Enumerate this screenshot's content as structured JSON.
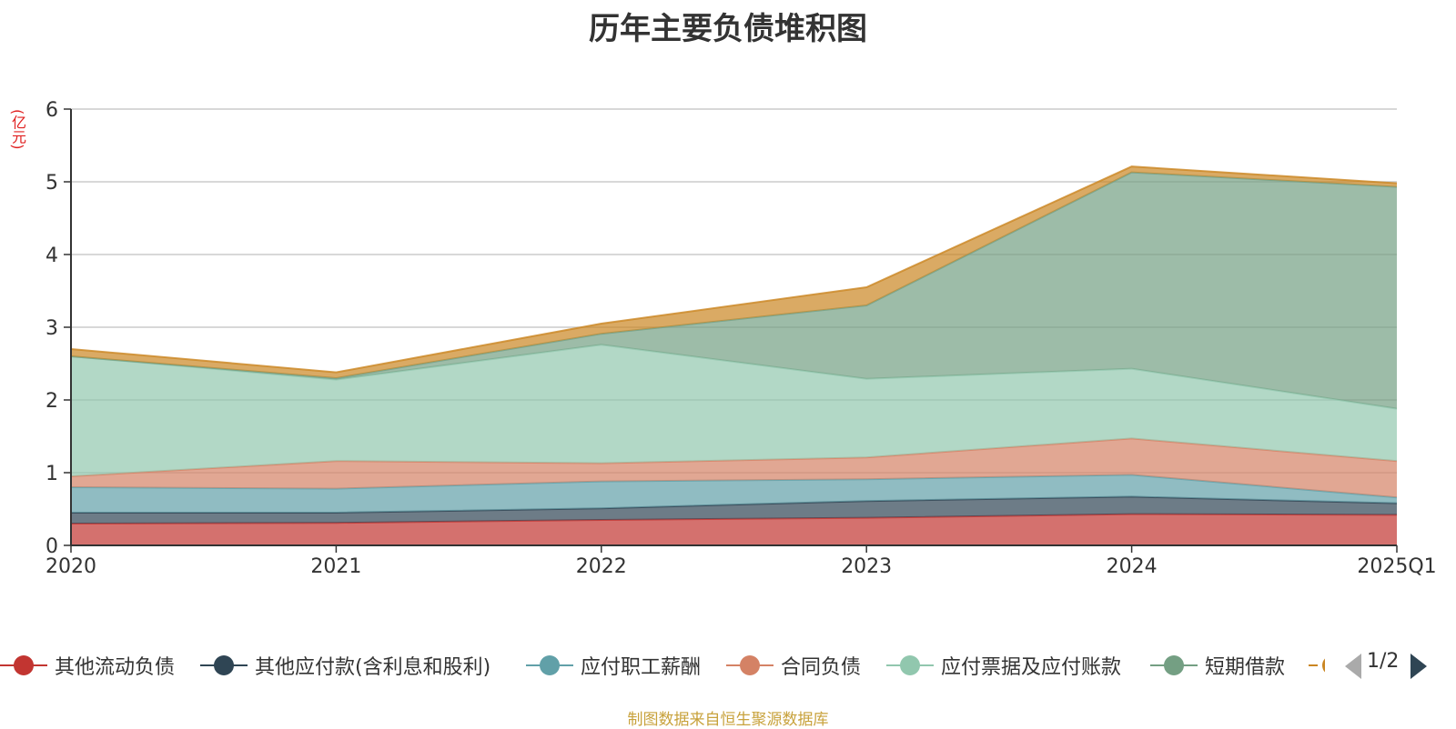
{
  "chart_data": {
    "type": "area",
    "stacked": true,
    "title": "历年主要负债堆积图",
    "unit_label": "(亿元)",
    "categories": [
      "2020",
      "2021",
      "2022",
      "2023",
      "2024",
      "2025Q1"
    ],
    "ylim": [
      0,
      6
    ],
    "yticks": [
      "0",
      "1",
      "2",
      "3",
      "4",
      "5",
      "6"
    ],
    "grid": true,
    "legend_position": "bottom",
    "series": [
      {
        "name": "其他流动负债",
        "color": "#c23531",
        "values": [
          0.3,
          0.31,
          0.35,
          0.38,
          0.43,
          0.42
        ]
      },
      {
        "name": "其他应付款(含利息和股利)",
        "color": "#2f4554",
        "values": [
          0.15,
          0.14,
          0.16,
          0.23,
          0.24,
          0.16
        ]
      },
      {
        "name": "应付职工薪酬",
        "color": "#61a0a8",
        "values": [
          0.35,
          0.33,
          0.37,
          0.3,
          0.3,
          0.08
        ]
      },
      {
        "name": "合同负债",
        "color": "#d48265",
        "values": [
          0.15,
          0.38,
          0.25,
          0.3,
          0.5,
          0.5
        ]
      },
      {
        "name": "应付票据及应付账款",
        "color": "#91c7ae",
        "values": [
          1.65,
          1.12,
          1.63,
          1.08,
          0.96,
          0.72
        ]
      },
      {
        "name": "短期借款",
        "color": "#749f83",
        "values": [
          0.0,
          0.02,
          0.15,
          1.01,
          2.7,
          3.05
        ]
      },
      {
        "name": "",
        "color": "#ca8622",
        "values": [
          0.1,
          0.08,
          0.14,
          0.25,
          0.08,
          0.05
        ]
      }
    ]
  },
  "pager": {
    "text": "1/2"
  },
  "source": "制图数据来自恒生聚源数据库"
}
